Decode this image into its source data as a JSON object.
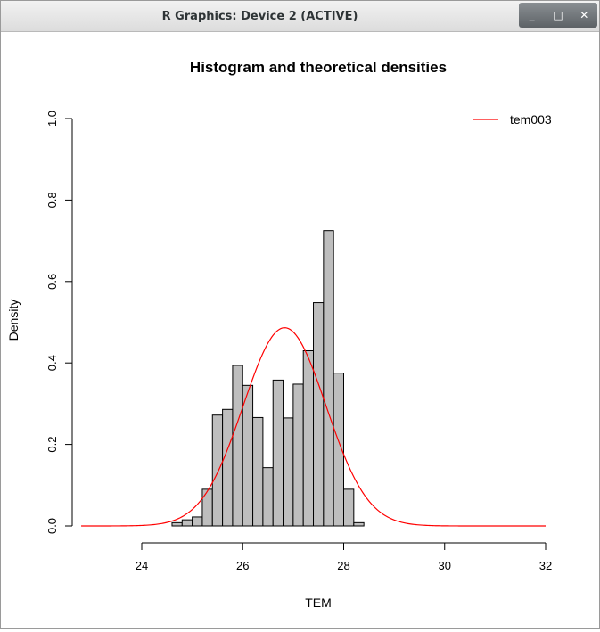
{
  "window": {
    "title": "R Graphics: Device 2 (ACTIVE)",
    "buttons": [
      {
        "name": "minimize",
        "glyph": "_"
      },
      {
        "name": "maximize",
        "glyph": "□"
      },
      {
        "name": "close",
        "glyph": "✕"
      }
    ]
  },
  "chart_data": {
    "type": "bar",
    "title": "Histogram and theoretical densities",
    "xlabel": "TEM",
    "ylabel": "Density",
    "xlim": [
      22.8,
      32
    ],
    "ylim": [
      0,
      1.0
    ],
    "x_ticks": [
      24,
      26,
      28,
      30,
      32
    ],
    "y_ticks": [
      0.0,
      0.2,
      0.4,
      0.6,
      0.8,
      1.0
    ],
    "y_tick_labels": [
      "0.0",
      "0.2",
      "0.4",
      "0.6",
      "0.8",
      "1.0"
    ],
    "grid": false,
    "legend_position": "top-right",
    "bar_color": "#bebebe",
    "bin_edges": [
      24.6,
      24.8,
      25.0,
      25.2,
      25.4,
      25.6,
      25.8,
      26.0,
      26.2,
      26.4,
      26.6,
      26.8,
      27.0,
      27.2,
      27.4,
      27.6,
      27.8,
      28.0,
      28.2,
      28.4
    ],
    "values": [
      0.008,
      0.015,
      0.022,
      0.09,
      0.272,
      0.286,
      0.394,
      0.345,
      0.266,
      0.143,
      0.358,
      0.265,
      0.348,
      0.43,
      0.548,
      0.725,
      0.375,
      0.09,
      0.008
    ],
    "series": [
      {
        "name": "tem003",
        "kind": "normal-density",
        "mean": 26.83,
        "sd": 0.82,
        "x_range": [
          22.8,
          32
        ],
        "color": "#ff0000"
      }
    ]
  }
}
